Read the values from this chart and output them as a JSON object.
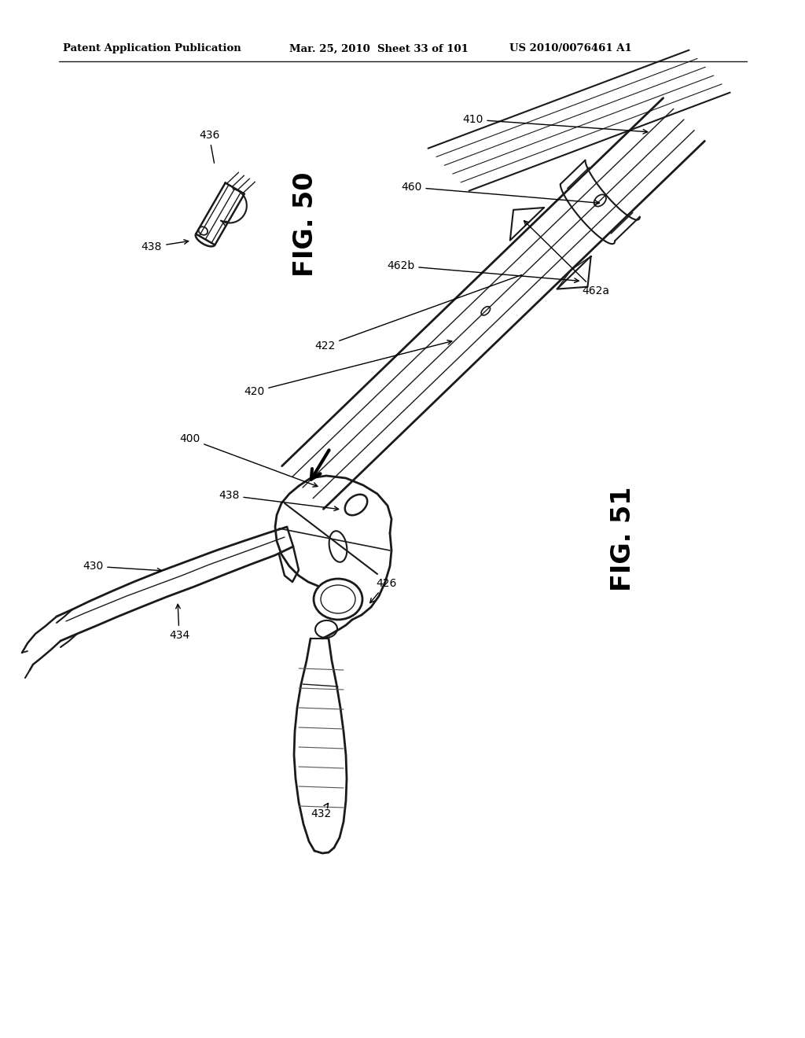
{
  "background_color": "#ffffff",
  "header_left": "Patent Application Publication",
  "header_mid": "Mar. 25, 2010  Sheet 33 of 101",
  "header_right": "US 2010/0076461 A1",
  "fig50_label": "FIG. 50",
  "fig51_label": "FIG. 51",
  "line_color": "#1a1a1a",
  "label_fontsize": 10,
  "header_fontsize": 9.5,
  "fig_label_fontsize": 24
}
